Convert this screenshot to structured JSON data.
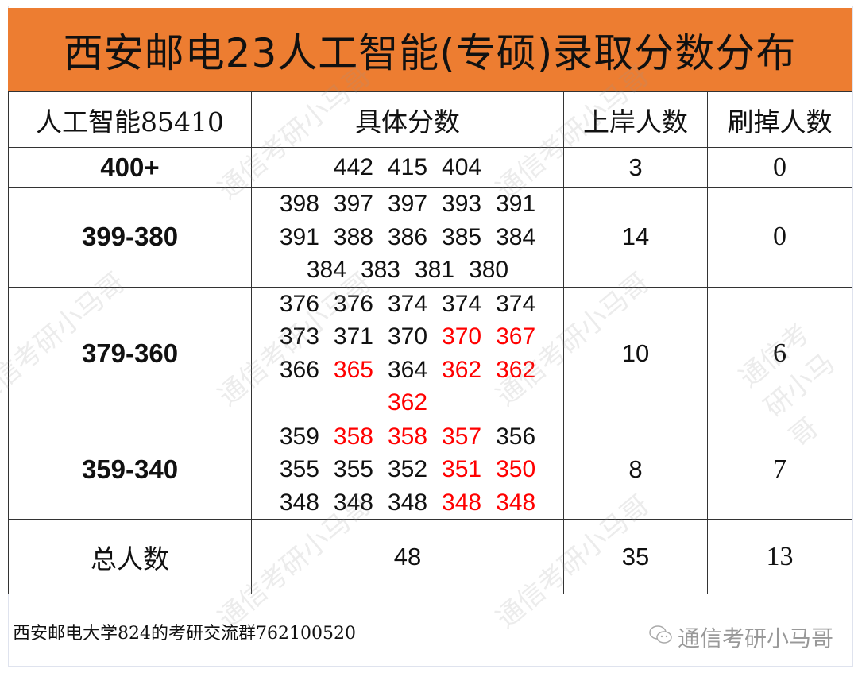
{
  "title": "西安邮电23人工智能(专硕)录取分数分布",
  "header": {
    "col1": "人工智能85410",
    "col2": "具体分数",
    "col3": "上岸人数",
    "col4": "刷掉人数"
  },
  "rows": [
    {
      "range": "400+",
      "admitted": "3",
      "dropped": "0",
      "score_lines": [
        [
          {
            "v": "442",
            "red": false
          },
          {
            "v": "415",
            "red": false
          },
          {
            "v": "404",
            "red": false
          }
        ]
      ]
    },
    {
      "range": "399-380",
      "admitted": "14",
      "dropped": "0",
      "score_lines": [
        [
          {
            "v": "398",
            "red": false
          },
          {
            "v": "397",
            "red": false
          },
          {
            "v": "397",
            "red": false
          },
          {
            "v": "393",
            "red": false
          },
          {
            "v": "391",
            "red": false
          }
        ],
        [
          {
            "v": "391",
            "red": false
          },
          {
            "v": "388",
            "red": false
          },
          {
            "v": "386",
            "red": false
          },
          {
            "v": "385",
            "red": false
          },
          {
            "v": "384",
            "red": false
          }
        ],
        [
          {
            "v": "384",
            "red": false
          },
          {
            "v": "383",
            "red": false
          },
          {
            "v": "381",
            "red": false
          },
          {
            "v": "380",
            "red": false
          }
        ]
      ]
    },
    {
      "range": "379-360",
      "admitted": "10",
      "dropped": "6",
      "score_lines": [
        [
          {
            "v": "376",
            "red": false
          },
          {
            "v": "376",
            "red": false
          },
          {
            "v": "374",
            "red": false
          },
          {
            "v": "374",
            "red": false
          },
          {
            "v": "374",
            "red": false
          }
        ],
        [
          {
            "v": "373",
            "red": false
          },
          {
            "v": "371",
            "red": false
          },
          {
            "v": "370",
            "red": false
          },
          {
            "v": "370",
            "red": true
          },
          {
            "v": "367",
            "red": true
          }
        ],
        [
          {
            "v": "366",
            "red": false
          },
          {
            "v": "365",
            "red": true
          },
          {
            "v": "364",
            "red": false
          },
          {
            "v": "362",
            "red": true
          },
          {
            "v": "362",
            "red": true
          }
        ],
        [
          {
            "v": "362",
            "red": true
          }
        ]
      ]
    },
    {
      "range": "359-340",
      "admitted": "8",
      "dropped": "7",
      "score_lines": [
        [
          {
            "v": "359",
            "red": false
          },
          {
            "v": "358",
            "red": true
          },
          {
            "v": "358",
            "red": true
          },
          {
            "v": "357",
            "red": true
          },
          {
            "v": "356",
            "red": false
          }
        ],
        [
          {
            "v": "355",
            "red": false
          },
          {
            "v": "355",
            "red": false
          },
          {
            "v": "352",
            "red": false
          },
          {
            "v": "351",
            "red": true
          },
          {
            "v": "350",
            "red": true
          }
        ],
        [
          {
            "v": "348",
            "red": false
          },
          {
            "v": "348",
            "red": false
          },
          {
            "v": "348",
            "red": false
          },
          {
            "v": "348",
            "red": true
          },
          {
            "v": "348",
            "red": true
          }
        ]
      ]
    }
  ],
  "total": {
    "label": "总人数",
    "total": "48",
    "admitted": "35",
    "dropped": "13"
  },
  "footer": "西安邮电大学824的考研交流群762100520",
  "watermark": "通信考研小马哥",
  "colors": {
    "title_bg": "#ED7D31",
    "dropped_score": "#FF0000"
  }
}
